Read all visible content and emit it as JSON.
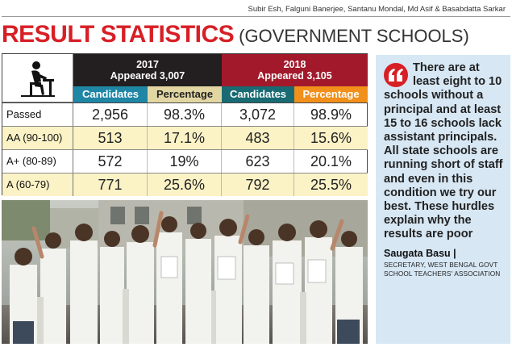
{
  "byline": "Subir Esh, Falguni Banerjee, Santanu Mondal, Md Asif & Basabdatta Sarkar",
  "headline": {
    "main": "RESULT STATISTICS",
    "sub": "(GOVERNMENT SCHOOLS)"
  },
  "table": {
    "icon": "student-at-desk-icon",
    "years": [
      {
        "year": "2017",
        "appeared": "Appeared 3,007"
      },
      {
        "year": "2018",
        "appeared": "Appeared 3,105"
      }
    ],
    "columns": [
      "Candidates",
      "Percentage",
      "Candidates",
      "Percentage"
    ],
    "rows": [
      {
        "label": "Passed",
        "values": [
          "2,956",
          "98.3%",
          "3,072",
          "98.9%"
        ]
      },
      {
        "label": "AA (90-100)",
        "values": [
          "513",
          "17.1%",
          "483",
          "15.6%"
        ]
      },
      {
        "label": "A+ (80-89)",
        "values": [
          "572",
          "19%",
          "623",
          "20.1%"
        ]
      },
      {
        "label": "A (60-79)",
        "values": [
          "771",
          "25.6%",
          "792",
          "25.5%"
        ]
      }
    ]
  },
  "quote": {
    "text": "There are at least eight to 10 schools without a principal and at least 15 to 16 schools lack assistant principals. All state schools are running short of staff and even in this condition we try our best. These hurdles explain why the results are poor",
    "name": "Saugata Basu |",
    "title": "SECRETARY, WEST BENGAL GOVT SCHOOL TEACHERS' ASSOCIATION"
  },
  "colors": {
    "headline_red": "#d71f26",
    "year2017": "#231f20",
    "year2018": "#a1192b",
    "cand2017": "#1f86a5",
    "pct2017": "#e2d6a3",
    "cand2018": "#196b73",
    "pct2018": "#f1901b",
    "row_alt": "#fbf2c6",
    "quote_bg": "#d7e7f4"
  }
}
